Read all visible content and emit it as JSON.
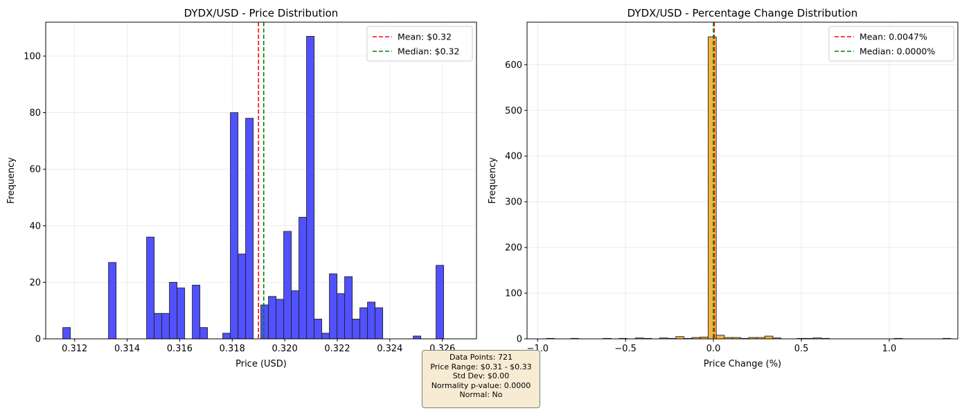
{
  "chart_data": [
    {
      "type": "bar",
      "title": "DYDX/USD - Price Distribution",
      "xlabel": "Price (USD)",
      "ylabel": "Frequency",
      "xlim": [
        0.3109,
        0.3273
      ],
      "ylim": [
        0,
        112
      ],
      "xticks": [
        0.312,
        0.314,
        0.316,
        0.318,
        0.32,
        0.322,
        0.324,
        0.326
      ],
      "xtick_labels": [
        "0.312",
        "0.314",
        "0.316",
        "0.318",
        "0.320",
        "0.322",
        "0.324",
        "0.326"
      ],
      "yticks": [
        0,
        20,
        40,
        60,
        80,
        100
      ],
      "ytick_labels": [
        "0",
        "20",
        "40",
        "60",
        "80",
        "100"
      ],
      "grid": true,
      "bar_color": "#4b4bff",
      "bin_edges": [
        0.31155,
        0.31184,
        0.31213,
        0.31242,
        0.31271,
        0.313,
        0.31329,
        0.31358,
        0.31387,
        0.31416,
        0.31445,
        0.31474,
        0.31503,
        0.31532,
        0.31561,
        0.3159,
        0.31619,
        0.31648,
        0.31677,
        0.31706,
        0.31735,
        0.31764,
        0.31793,
        0.31822,
        0.31851,
        0.3188,
        0.31909,
        0.31938,
        0.31967,
        0.31996,
        0.32025,
        0.32054,
        0.32083,
        0.32112,
        0.32141,
        0.3217,
        0.32199,
        0.32228,
        0.32257,
        0.32286,
        0.32315,
        0.32344,
        0.32373,
        0.32402,
        0.32431,
        0.3246,
        0.32489,
        0.32518,
        0.32547,
        0.32576,
        0.32605
      ],
      "values": [
        4,
        0,
        0,
        0,
        0,
        0,
        27,
        0,
        0,
        0,
        0,
        36,
        9,
        9,
        20,
        18,
        0,
        19,
        4,
        0,
        0,
        2,
        80,
        30,
        78,
        0,
        12,
        15,
        14,
        38,
        17,
        43,
        107,
        7,
        2,
        23,
        16,
        22,
        7,
        11,
        13,
        11,
        0,
        0,
        0,
        0,
        1,
        0,
        0,
        26
      ],
      "lines": [
        {
          "name": "Mean: $0.32",
          "x": 0.319,
          "color": "#ff0000"
        },
        {
          "name": "Median: $0.32",
          "x": 0.3192,
          "color": "#008000"
        }
      ],
      "legend": "top-right"
    },
    {
      "type": "bar",
      "title": "DYDX/USD - Percentage Change Distribution",
      "xlabel": "Price Change (%)",
      "ylabel": "Frequency",
      "xlim": [
        -1.06,
        1.39
      ],
      "ylim": [
        0,
        693
      ],
      "xticks": [
        -1.0,
        -0.5,
        0.0,
        0.5,
        1.0
      ],
      "xtick_labels": [
        "−1.0",
        "−0.5",
        "0.0",
        "0.5",
        "1.0"
      ],
      "yticks": [
        0,
        100,
        200,
        300,
        400,
        500,
        600
      ],
      "ytick_labels": [
        "0",
        "100",
        "200",
        "300",
        "400",
        "500",
        "600"
      ],
      "grid": true,
      "bar_color": "#f5b13c",
      "bin_edges": [
        -0.95,
        -0.904,
        -0.858,
        -0.812,
        -0.766,
        -0.72,
        -0.674,
        -0.628,
        -0.582,
        -0.536,
        -0.49,
        -0.444,
        -0.398,
        -0.352,
        -0.306,
        -0.26,
        -0.214,
        -0.168,
        -0.122,
        -0.076,
        -0.03,
        0.016,
        0.062,
        0.108,
        0.154,
        0.2,
        0.246,
        0.292,
        0.338,
        0.384,
        0.43,
        0.476,
        0.522,
        0.568,
        0.614,
        0.66,
        0.706,
        0.752,
        0.798,
        0.844,
        0.89,
        0.936,
        0.982,
        1.028,
        1.074,
        1.12,
        1.166,
        1.212,
        1.258,
        1.304,
        1.35
      ],
      "values": [
        1,
        0,
        0,
        1,
        0,
        0,
        0,
        1,
        0,
        1,
        0,
        2,
        1,
        0,
        2,
        1,
        5,
        1,
        3,
        4,
        661,
        8,
        3,
        3,
        1,
        3,
        3,
        6,
        2,
        0,
        0,
        1,
        1,
        2,
        1,
        0,
        0,
        0,
        0,
        0,
        0,
        0,
        0,
        1,
        0,
        0,
        0,
        0,
        0,
        1
      ],
      "lines": [
        {
          "name": "Mean: 0.0047%",
          "x": 0.0047,
          "color": "#ff0000"
        },
        {
          "name": "Median: 0.0000%",
          "x": 0.0,
          "color": "#008000"
        }
      ],
      "legend": "top-right"
    }
  ],
  "stats": {
    "lines": [
      "Data Points: 721",
      "Price Range: $0.31 - $0.33",
      "Std Dev: $0.00",
      "Normality p-value: 0.0000",
      "Normal: No"
    ]
  }
}
